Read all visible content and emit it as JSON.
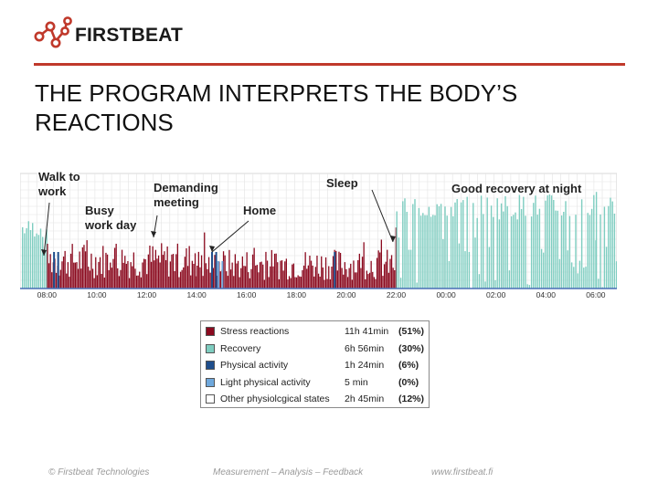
{
  "brand": {
    "name": "FIRSTBEAT",
    "accent": "#c0392b"
  },
  "slide": {
    "title": "THE PROGRAM INTERPRETS THE BODY’S REACTIONS"
  },
  "chart_data": {
    "type": "bar",
    "title": "",
    "x_ticks": [
      "08:00",
      "10:00",
      "12:00",
      "14:00",
      "16:00",
      "18:00",
      "20:00",
      "22:00",
      "00:00",
      "02:00",
      "04:00",
      "06:00"
    ],
    "annotations": [
      {
        "name": "walk-to-work",
        "lines": [
          "Walk to",
          "work"
        ]
      },
      {
        "name": "demanding-meeting",
        "lines": [
          "Demanding",
          "meeting"
        ]
      },
      {
        "name": "busy-work-day",
        "lines": [
          "Busy",
          "work day"
        ]
      },
      {
        "name": "home",
        "lines": [
          "Home"
        ]
      },
      {
        "name": "sleep",
        "lines": [
          "Sleep"
        ]
      },
      {
        "name": "good-recovery",
        "lines": [
          "Good recovery at night"
        ]
      }
    ],
    "series": [
      {
        "name": "Stress reactions",
        "color": "#8b0a1f",
        "duration": "11h 41min",
        "share": "(51%)"
      },
      {
        "name": "Recovery",
        "color": "#7ecdc0",
        "duration": "6h 56min",
        "share": "(30%)"
      },
      {
        "name": "Physical activity",
        "color": "#1f4e8c",
        "duration": "1h 24min",
        "share": "(6%)"
      },
      {
        "name": "Light physical activity",
        "color": "#6fa8dc",
        "duration": "5 min",
        "share": "(0%)"
      },
      {
        "name": "Other physiolcgical states",
        "color": "#ffffff",
        "duration": "2h 45min",
        "share": "(12%)"
      }
    ],
    "segments": [
      {
        "from": "07:00",
        "to": "08:00",
        "state": "Recovery",
        "level": 0.55
      },
      {
        "from": "08:00",
        "to": "14:00",
        "state": "Stress reactions",
        "level": 0.35
      },
      {
        "from": "14:00",
        "to": "22:00",
        "state": "Stress reactions",
        "level": 0.3
      },
      {
        "from": "22:00",
        "to": "06:00",
        "state": "Recovery",
        "level": 0.75
      },
      {
        "from": "06:00",
        "to": "07:00",
        "state": "Recovery",
        "level": 0.8
      }
    ]
  },
  "footer": {
    "copyright": "© Firstbeat Technologies",
    "tagline": "Measurement – Analysis – Feedback",
    "website": "www.firstbeat.fi"
  }
}
